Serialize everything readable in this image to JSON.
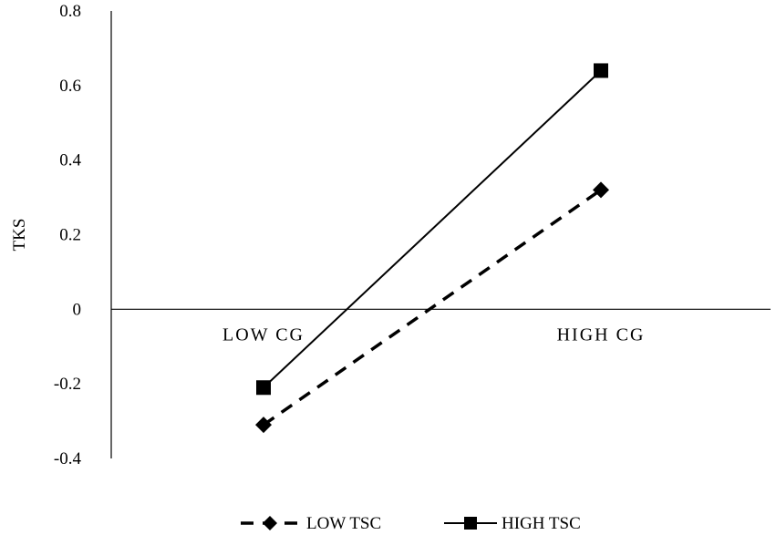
{
  "chart_data": {
    "type": "line",
    "title": "",
    "xlabel": "",
    "ylabel": "TKS",
    "ylim": [
      -0.4,
      0.8
    ],
    "yticks": [
      "0.8",
      "0.6",
      "0.4",
      "0.2",
      "0",
      "-0.2",
      "-0.4"
    ],
    "ytick_values": [
      0.8,
      0.6,
      0.4,
      0.2,
      0,
      -0.2,
      -0.4
    ],
    "categories": [
      "LOW CG",
      "HIGH CG"
    ],
    "grid": false,
    "legend_position": "bottom",
    "series": [
      {
        "name": "LOW TSC",
        "values": [
          -0.31,
          0.32
        ],
        "line_style": "dashed",
        "marker": "diamond",
        "color": "#000000"
      },
      {
        "name": "HIGH TSC",
        "values": [
          -0.21,
          0.64
        ],
        "line_style": "solid",
        "marker": "square",
        "color": "#000000"
      }
    ]
  }
}
